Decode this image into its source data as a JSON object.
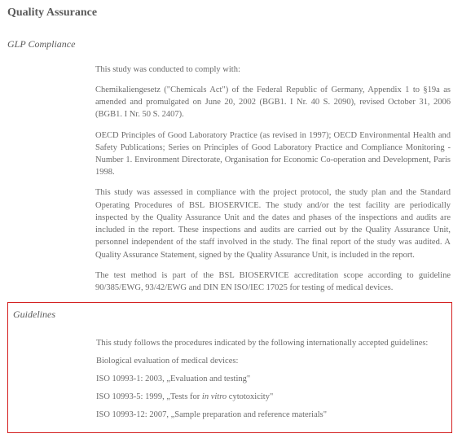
{
  "heading": "Quality Assurance",
  "glp": {
    "title": "GLP Compliance",
    "intro": "This study was conducted to comply with:",
    "p1": "Chemikaliengesetz (\"Chemicals Act\") of the Federal Republic of Germany, Appendix 1 to §19a as amended and promulgated on June 20, 2002 (BGB1. I Nr. 40 S. 2090), revised October 31, 2006 (BGB1. I Nr. 50 S. 2407).",
    "p2": "OECD Principles of Good Laboratory Practice (as revised in 1997); OECD Environmental Health and Safety Publications; Series on Principles of Good Laboratory Practice and Compliance Monitoring - Number 1. Environment Directorate, Organisation for Economic Co-operation and Development, Paris 1998.",
    "p3": "This study was assessed in compliance with the project protocol, the study plan and the Standard Operating Procedures of BSL BIOSERVICE. The study and/or the test facility are periodically inspected by the Quality Assurance Unit and the dates and phases of the inspections and audits are included in the report. These inspections and audits are carried out by the Quality Assurance Unit, personnel independent of the staff involved in the study. The final report of the study was audited. A Quality Assurance Statement, signed by the Quality Assurance Unit, is included in the report.",
    "p4": "The test method is part of the BSL BIOSERVICE accreditation scope according to guideline 90/385/EWG, 93/42/EWG and DIN EN ISO/IEC 17025 for testing of medical devices."
  },
  "guidelines": {
    "title": "Guidelines",
    "intro": "This study follows the procedures indicated by the following internationally accepted guidelines:",
    "bio": "Biological evaluation of medical devices:",
    "iso1_pre": "ISO 10993-1: 2003, „Evaluation and testing\"",
    "iso2_pre": "ISO 10993-5: 1999, „Tests for ",
    "iso2_italic": "in vitro",
    "iso2_post": " cytotoxicity\"",
    "iso3": "ISO 10993-12: 2007, „Sample preparation and reference materials\""
  }
}
